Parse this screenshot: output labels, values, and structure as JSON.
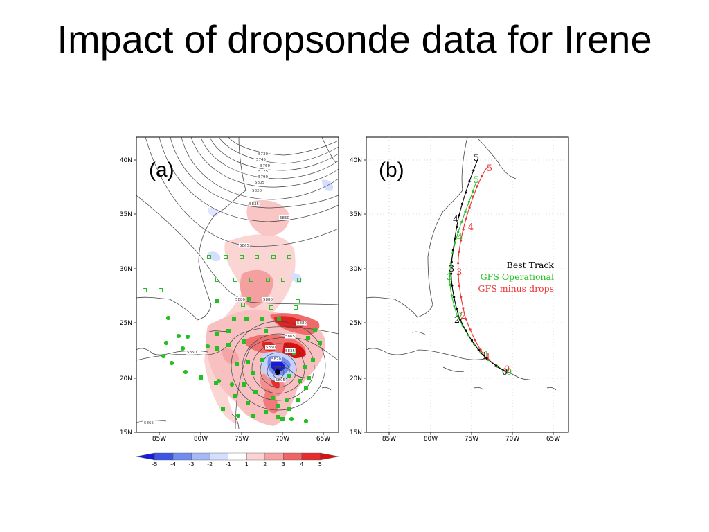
{
  "slide": {
    "title": "Impact of dropsonde data for Irene"
  },
  "maps": {
    "lon_ticks": [
      "85W",
      "80W",
      "75W",
      "70W",
      "65W"
    ],
    "lat_ticks": [
      "15N",
      "20N",
      "25N",
      "30N",
      "35N",
      "40N"
    ],
    "panel_a": {
      "label": "(a)",
      "contour_labels": [
        "5730",
        "5745",
        "5760",
        "5775",
        "5790",
        "5805",
        "5820",
        "5835",
        "5850",
        "5865",
        "5880",
        "5880",
        "5880",
        "5865",
        "5850",
        "5835",
        "5820",
        "5805",
        "5850",
        "5865"
      ]
    },
    "panel_b": {
      "label": "(b)",
      "legend": [
        {
          "name": "Best Track",
          "color": "#000000"
        },
        {
          "name": "GFS Operational",
          "color": "#22c022"
        },
        {
          "name": "GFS minus drops",
          "color": "#ee3333"
        }
      ],
      "track_day_marks": {
        "black": [
          "0",
          "1",
          "2",
          "3",
          "4",
          "5"
        ],
        "green": [
          "0",
          "1",
          "2",
          "3",
          "4",
          "5"
        ],
        "red": [
          "0",
          "1",
          "2",
          "3",
          "4",
          "5"
        ]
      }
    },
    "colorbar": {
      "labels": [
        "-5",
        "-4",
        "-3",
        "-2",
        "-1",
        "1",
        "2",
        "3",
        "4",
        "5"
      ],
      "colors": [
        "#1a1ad9",
        "#3c55e6",
        "#6f8cf0",
        "#a6b8f5",
        "#d6deff",
        "#ffffff",
        "#fcd2d2",
        "#f6a3a3",
        "#f06464",
        "#e52d2d",
        "#d91010"
      ]
    }
  }
}
